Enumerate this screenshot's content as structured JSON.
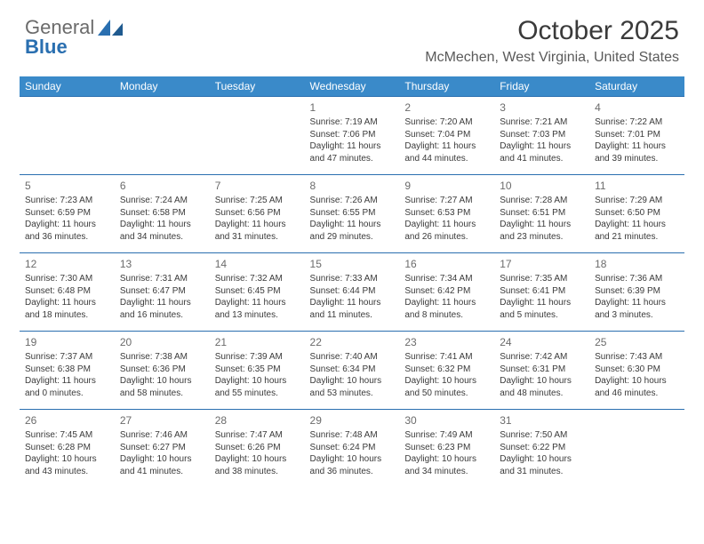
{
  "brand": {
    "word1": "General",
    "word2": "Blue"
  },
  "header": {
    "month_title": "October 2025",
    "location": "McMechen, West Virginia, United States"
  },
  "colors": {
    "header_bg": "#3a8ac9",
    "header_text": "#ffffff",
    "border": "#2a6fb0",
    "text": "#3a3a3a",
    "muted": "#6b6b6b"
  },
  "day_labels": [
    "Sunday",
    "Monday",
    "Tuesday",
    "Wednesday",
    "Thursday",
    "Friday",
    "Saturday"
  ],
  "weeks": [
    [
      null,
      null,
      null,
      {
        "n": "1",
        "sunrise": "Sunrise: 7:19 AM",
        "sunset": "Sunset: 7:06 PM",
        "day1": "Daylight: 11 hours",
        "day2": "and 47 minutes."
      },
      {
        "n": "2",
        "sunrise": "Sunrise: 7:20 AM",
        "sunset": "Sunset: 7:04 PM",
        "day1": "Daylight: 11 hours",
        "day2": "and 44 minutes."
      },
      {
        "n": "3",
        "sunrise": "Sunrise: 7:21 AM",
        "sunset": "Sunset: 7:03 PM",
        "day1": "Daylight: 11 hours",
        "day2": "and 41 minutes."
      },
      {
        "n": "4",
        "sunrise": "Sunrise: 7:22 AM",
        "sunset": "Sunset: 7:01 PM",
        "day1": "Daylight: 11 hours",
        "day2": "and 39 minutes."
      }
    ],
    [
      {
        "n": "5",
        "sunrise": "Sunrise: 7:23 AM",
        "sunset": "Sunset: 6:59 PM",
        "day1": "Daylight: 11 hours",
        "day2": "and 36 minutes."
      },
      {
        "n": "6",
        "sunrise": "Sunrise: 7:24 AM",
        "sunset": "Sunset: 6:58 PM",
        "day1": "Daylight: 11 hours",
        "day2": "and 34 minutes."
      },
      {
        "n": "7",
        "sunrise": "Sunrise: 7:25 AM",
        "sunset": "Sunset: 6:56 PM",
        "day1": "Daylight: 11 hours",
        "day2": "and 31 minutes."
      },
      {
        "n": "8",
        "sunrise": "Sunrise: 7:26 AM",
        "sunset": "Sunset: 6:55 PM",
        "day1": "Daylight: 11 hours",
        "day2": "and 29 minutes."
      },
      {
        "n": "9",
        "sunrise": "Sunrise: 7:27 AM",
        "sunset": "Sunset: 6:53 PM",
        "day1": "Daylight: 11 hours",
        "day2": "and 26 minutes."
      },
      {
        "n": "10",
        "sunrise": "Sunrise: 7:28 AM",
        "sunset": "Sunset: 6:51 PM",
        "day1": "Daylight: 11 hours",
        "day2": "and 23 minutes."
      },
      {
        "n": "11",
        "sunrise": "Sunrise: 7:29 AM",
        "sunset": "Sunset: 6:50 PM",
        "day1": "Daylight: 11 hours",
        "day2": "and 21 minutes."
      }
    ],
    [
      {
        "n": "12",
        "sunrise": "Sunrise: 7:30 AM",
        "sunset": "Sunset: 6:48 PM",
        "day1": "Daylight: 11 hours",
        "day2": "and 18 minutes."
      },
      {
        "n": "13",
        "sunrise": "Sunrise: 7:31 AM",
        "sunset": "Sunset: 6:47 PM",
        "day1": "Daylight: 11 hours",
        "day2": "and 16 minutes."
      },
      {
        "n": "14",
        "sunrise": "Sunrise: 7:32 AM",
        "sunset": "Sunset: 6:45 PM",
        "day1": "Daylight: 11 hours",
        "day2": "and 13 minutes."
      },
      {
        "n": "15",
        "sunrise": "Sunrise: 7:33 AM",
        "sunset": "Sunset: 6:44 PM",
        "day1": "Daylight: 11 hours",
        "day2": "and 11 minutes."
      },
      {
        "n": "16",
        "sunrise": "Sunrise: 7:34 AM",
        "sunset": "Sunset: 6:42 PM",
        "day1": "Daylight: 11 hours",
        "day2": "and 8 minutes."
      },
      {
        "n": "17",
        "sunrise": "Sunrise: 7:35 AM",
        "sunset": "Sunset: 6:41 PM",
        "day1": "Daylight: 11 hours",
        "day2": "and 5 minutes."
      },
      {
        "n": "18",
        "sunrise": "Sunrise: 7:36 AM",
        "sunset": "Sunset: 6:39 PM",
        "day1": "Daylight: 11 hours",
        "day2": "and 3 minutes."
      }
    ],
    [
      {
        "n": "19",
        "sunrise": "Sunrise: 7:37 AM",
        "sunset": "Sunset: 6:38 PM",
        "day1": "Daylight: 11 hours",
        "day2": "and 0 minutes."
      },
      {
        "n": "20",
        "sunrise": "Sunrise: 7:38 AM",
        "sunset": "Sunset: 6:36 PM",
        "day1": "Daylight: 10 hours",
        "day2": "and 58 minutes."
      },
      {
        "n": "21",
        "sunrise": "Sunrise: 7:39 AM",
        "sunset": "Sunset: 6:35 PM",
        "day1": "Daylight: 10 hours",
        "day2": "and 55 minutes."
      },
      {
        "n": "22",
        "sunrise": "Sunrise: 7:40 AM",
        "sunset": "Sunset: 6:34 PM",
        "day1": "Daylight: 10 hours",
        "day2": "and 53 minutes."
      },
      {
        "n": "23",
        "sunrise": "Sunrise: 7:41 AM",
        "sunset": "Sunset: 6:32 PM",
        "day1": "Daylight: 10 hours",
        "day2": "and 50 minutes."
      },
      {
        "n": "24",
        "sunrise": "Sunrise: 7:42 AM",
        "sunset": "Sunset: 6:31 PM",
        "day1": "Daylight: 10 hours",
        "day2": "and 48 minutes."
      },
      {
        "n": "25",
        "sunrise": "Sunrise: 7:43 AM",
        "sunset": "Sunset: 6:30 PM",
        "day1": "Daylight: 10 hours",
        "day2": "and 46 minutes."
      }
    ],
    [
      {
        "n": "26",
        "sunrise": "Sunrise: 7:45 AM",
        "sunset": "Sunset: 6:28 PM",
        "day1": "Daylight: 10 hours",
        "day2": "and 43 minutes."
      },
      {
        "n": "27",
        "sunrise": "Sunrise: 7:46 AM",
        "sunset": "Sunset: 6:27 PM",
        "day1": "Daylight: 10 hours",
        "day2": "and 41 minutes."
      },
      {
        "n": "28",
        "sunrise": "Sunrise: 7:47 AM",
        "sunset": "Sunset: 6:26 PM",
        "day1": "Daylight: 10 hours",
        "day2": "and 38 minutes."
      },
      {
        "n": "29",
        "sunrise": "Sunrise: 7:48 AM",
        "sunset": "Sunset: 6:24 PM",
        "day1": "Daylight: 10 hours",
        "day2": "and 36 minutes."
      },
      {
        "n": "30",
        "sunrise": "Sunrise: 7:49 AM",
        "sunset": "Sunset: 6:23 PM",
        "day1": "Daylight: 10 hours",
        "day2": "and 34 minutes."
      },
      {
        "n": "31",
        "sunrise": "Sunrise: 7:50 AM",
        "sunset": "Sunset: 6:22 PM",
        "day1": "Daylight: 10 hours",
        "day2": "and 31 minutes."
      },
      null
    ]
  ]
}
